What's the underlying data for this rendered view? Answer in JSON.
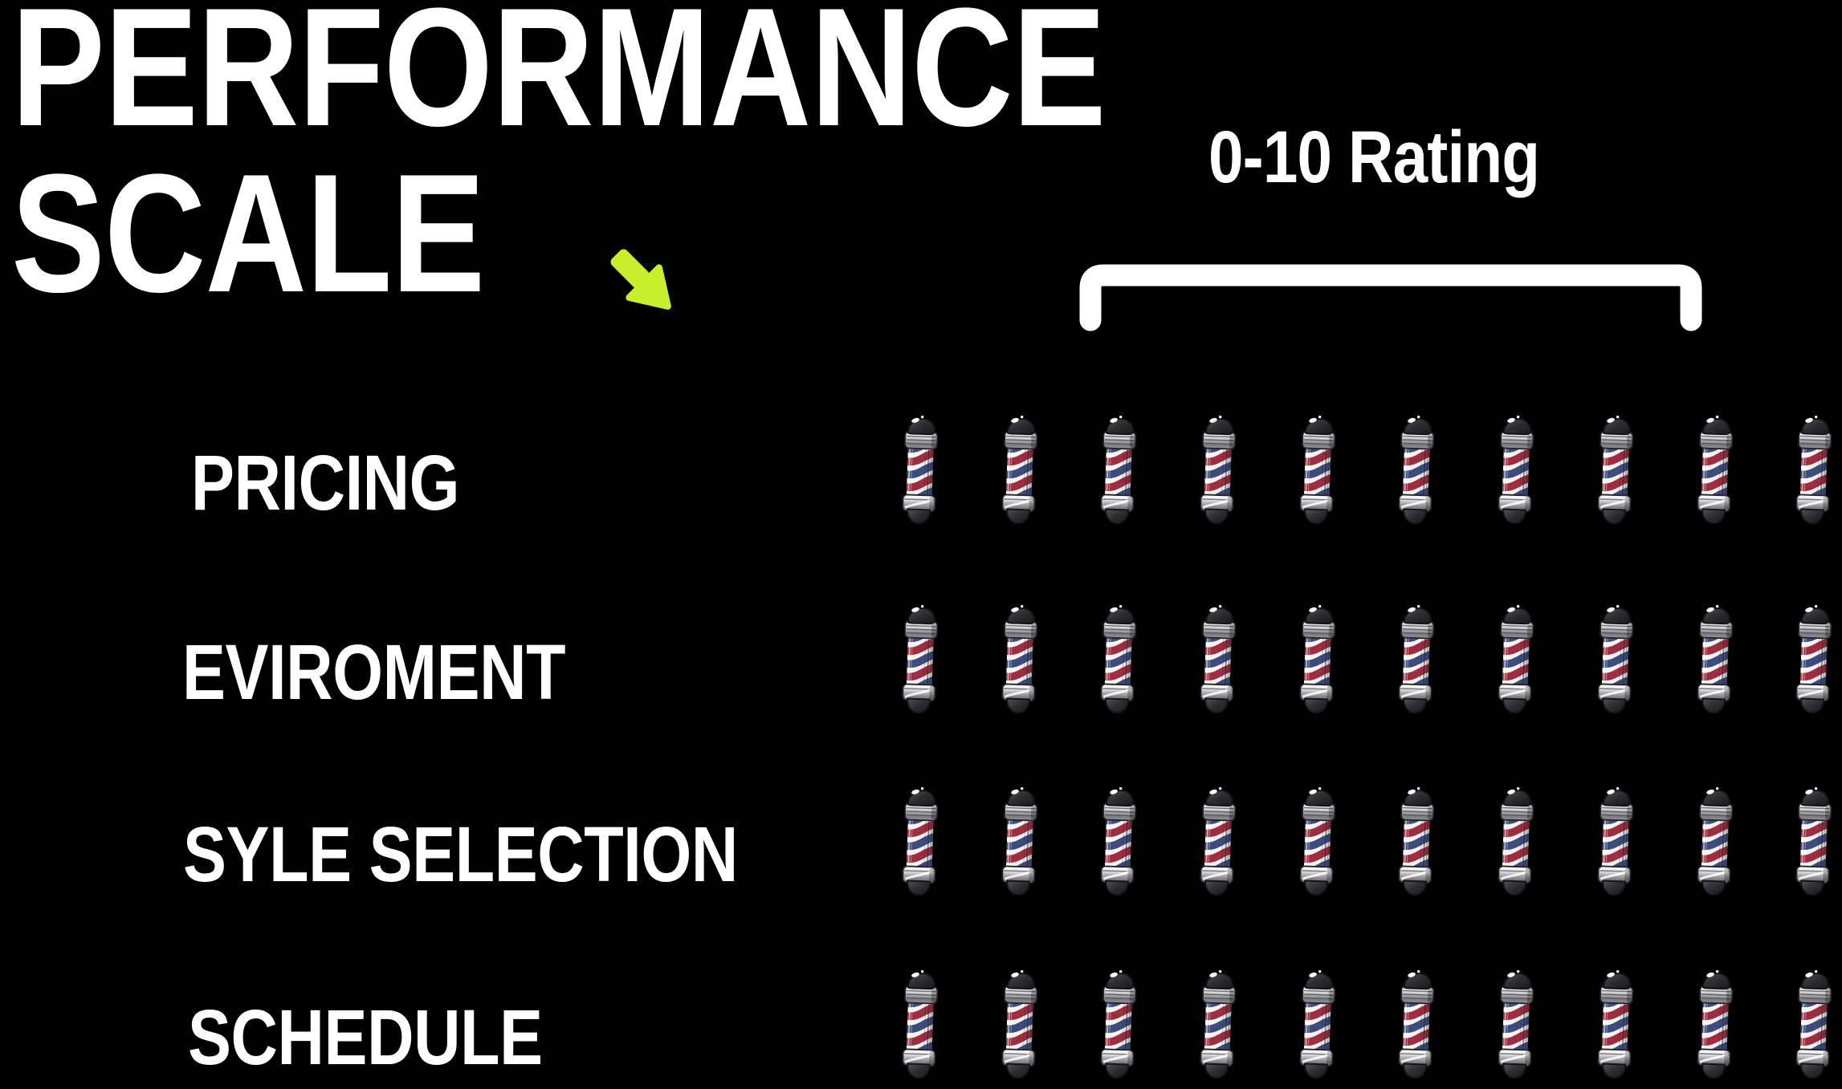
{
  "title": {
    "line1": "PERFORMANCE",
    "line2": "SCALE"
  },
  "rating_scale": {
    "label": "0-10 Rating",
    "min": 0,
    "max": 10
  },
  "chart_data": {
    "type": "pictogram",
    "icon": "barber-pole",
    "categories": [
      "PRICING",
      "EVIROMENT",
      "SYLE SELECTION",
      "SCHEDULE"
    ],
    "values": [
      10,
      10,
      10,
      10
    ],
    "icons_per_row": 10,
    "scale_label": "0-10 Rating",
    "scale_min": 0,
    "scale_max": 10,
    "legend_position": "top-right",
    "grid": false,
    "title": "PERFORMANCE SCALE"
  },
  "icons": {
    "arrow": "arrow-down-right-icon",
    "bracket": "range-bracket",
    "unit": "barber-pole-icon"
  },
  "colors": {
    "background": "#000000",
    "text": "#ffffff",
    "accent_arrow": "#c9ee2b",
    "pole_red": "#9e2d42",
    "pole_blue": "#3e4c7d",
    "pole_body": "#f4f3ef",
    "pole_cap_dark": "#2e2e33",
    "pole_chrome_light": "#ffffff",
    "pole_chrome_dark": "#7c7c81"
  }
}
